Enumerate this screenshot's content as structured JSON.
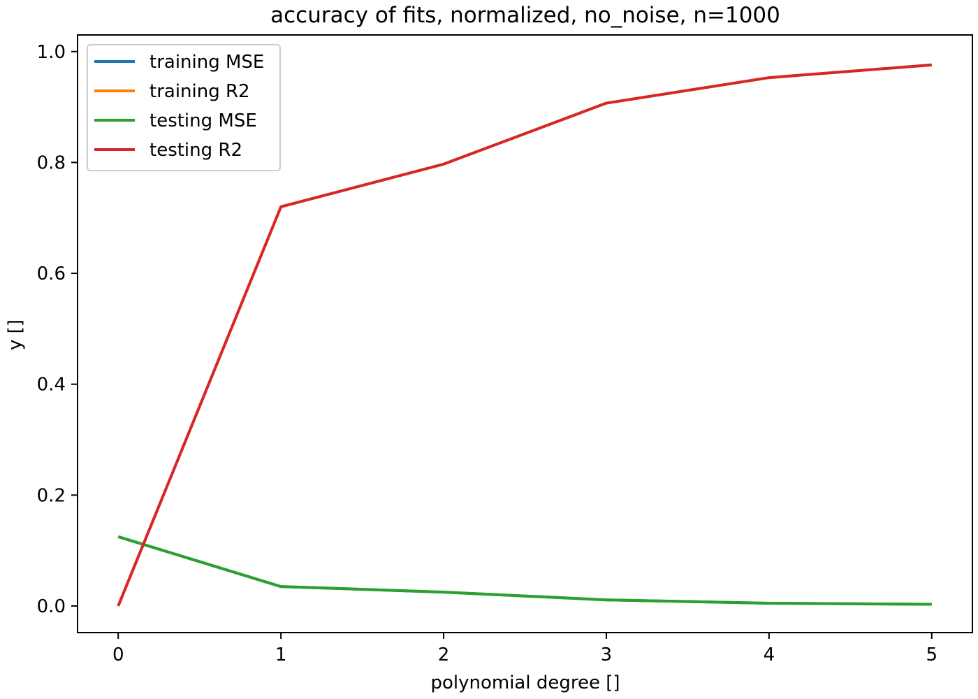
{
  "chart_data": {
    "type": "line",
    "title": "accuracy of fits, normalized, no_noise, n=1000",
    "xlabel": "polynomial degree []",
    "ylabel": "y []",
    "x": [
      0,
      1,
      2,
      3,
      4,
      5
    ],
    "xlim": [
      -0.25,
      5.25
    ],
    "ylim": [
      -0.048,
      1.03
    ],
    "xticks": [
      0,
      1,
      2,
      3,
      4,
      5
    ],
    "yticks": [
      0.0,
      0.2,
      0.4,
      0.6,
      0.8,
      1.0
    ],
    "xtick_labels": [
      "0",
      "1",
      "2",
      "3",
      "4",
      "5"
    ],
    "ytick_labels": [
      "0.0",
      "0.2",
      "0.4",
      "0.6",
      "0.8",
      "1.0"
    ],
    "grid": false,
    "legend_position": "top-left",
    "series": [
      {
        "name": "training MSE",
        "color": "#1f77b4",
        "values": [
          0.125,
          0.035,
          0.025,
          0.011,
          0.005,
          0.003
        ]
      },
      {
        "name": "training R2",
        "color": "#ff7f0e",
        "values": [
          0.0,
          0.72,
          0.797,
          0.907,
          0.953,
          0.976
        ]
      },
      {
        "name": "testing MSE",
        "color": "#2ca02c",
        "values": [
          0.125,
          0.035,
          0.025,
          0.011,
          0.005,
          0.003
        ]
      },
      {
        "name": "testing R2",
        "color": "#d62728",
        "values": [
          0.0,
          0.72,
          0.797,
          0.907,
          0.953,
          0.976
        ]
      }
    ]
  }
}
